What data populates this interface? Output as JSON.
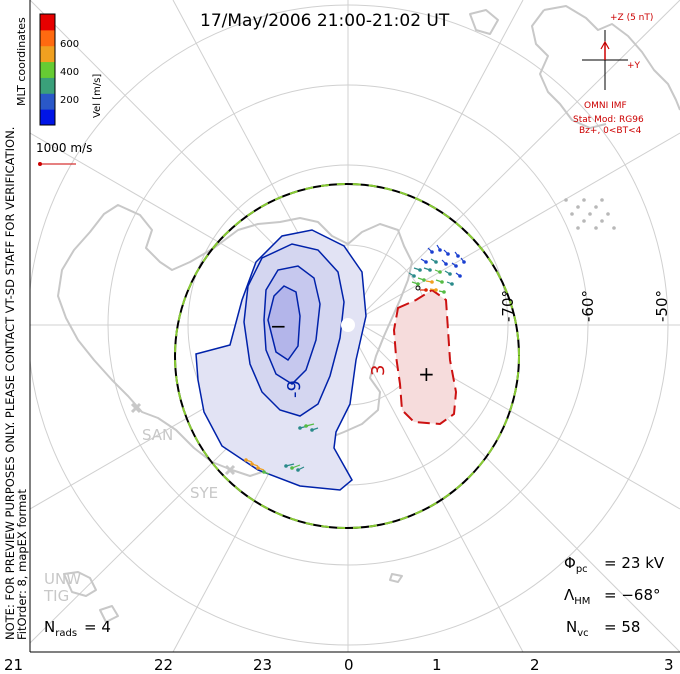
{
  "title": "17/May/2006 21:00-21:02 UT",
  "colorbar": {
    "unit_label": "Vel [m/s]",
    "tick_labels": [
      "600",
      "400",
      "200"
    ],
    "colors": [
      "#0015e6",
      "#2a58c8",
      "#3aa07a",
      "#66cc33",
      "#f0a020",
      "#ff6a10",
      "#e60000"
    ]
  },
  "coord_label": "MLT coordinates",
  "vector_scale_label": "1000 m/s",
  "preview_note": "NOTE: FOR PREVIEW PURPOSES ONLY. PLEASE CONTACT VT-SD STAFF FOR VERIFICATION.",
  "fit_note": "FitOrder: 8, mapEX format",
  "imf": {
    "z_label": "+Z (5 nT)",
    "y_label": "+Y",
    "source": "OMNI IMF",
    "stat_mod": "Stat Mod: RG96",
    "condition": "Bz+, 0<BT<4"
  },
  "contour_labels": {
    "negative": "-9",
    "positive": "3",
    "min_marker": "−",
    "max_marker": "+"
  },
  "lat_labels": [
    "-70°",
    "-60°",
    "-50°"
  ],
  "mlt_labels": [
    "21",
    "22",
    "23",
    "0",
    "1",
    "2",
    "3"
  ],
  "stations": [
    "SAN",
    "SYE",
    "UNW",
    "TIG"
  ],
  "stats": {
    "phi_pc_label": "Φpc",
    "phi_pc_value": "= 23 kV",
    "lambda_hm_label": "ΛHM",
    "lambda_hm_value": "= −68°",
    "n_vc_label": "Nvc",
    "n_vc_value": "= 58",
    "n_rads_label": "Nrads",
    "n_rads_value": "= 4"
  },
  "colors": {
    "negative_fill": "#e2e3f4",
    "negative_core": "#b3b5ea",
    "negative_line": "#0022aa",
    "positive_fill": "#f6dcdc",
    "positive_line": "#cc1111",
    "hm_boundary": "#000000",
    "hm_boundary_dash": "#88cc33",
    "grid": "#d0d0d0",
    "land": "#c8c8c8"
  }
}
